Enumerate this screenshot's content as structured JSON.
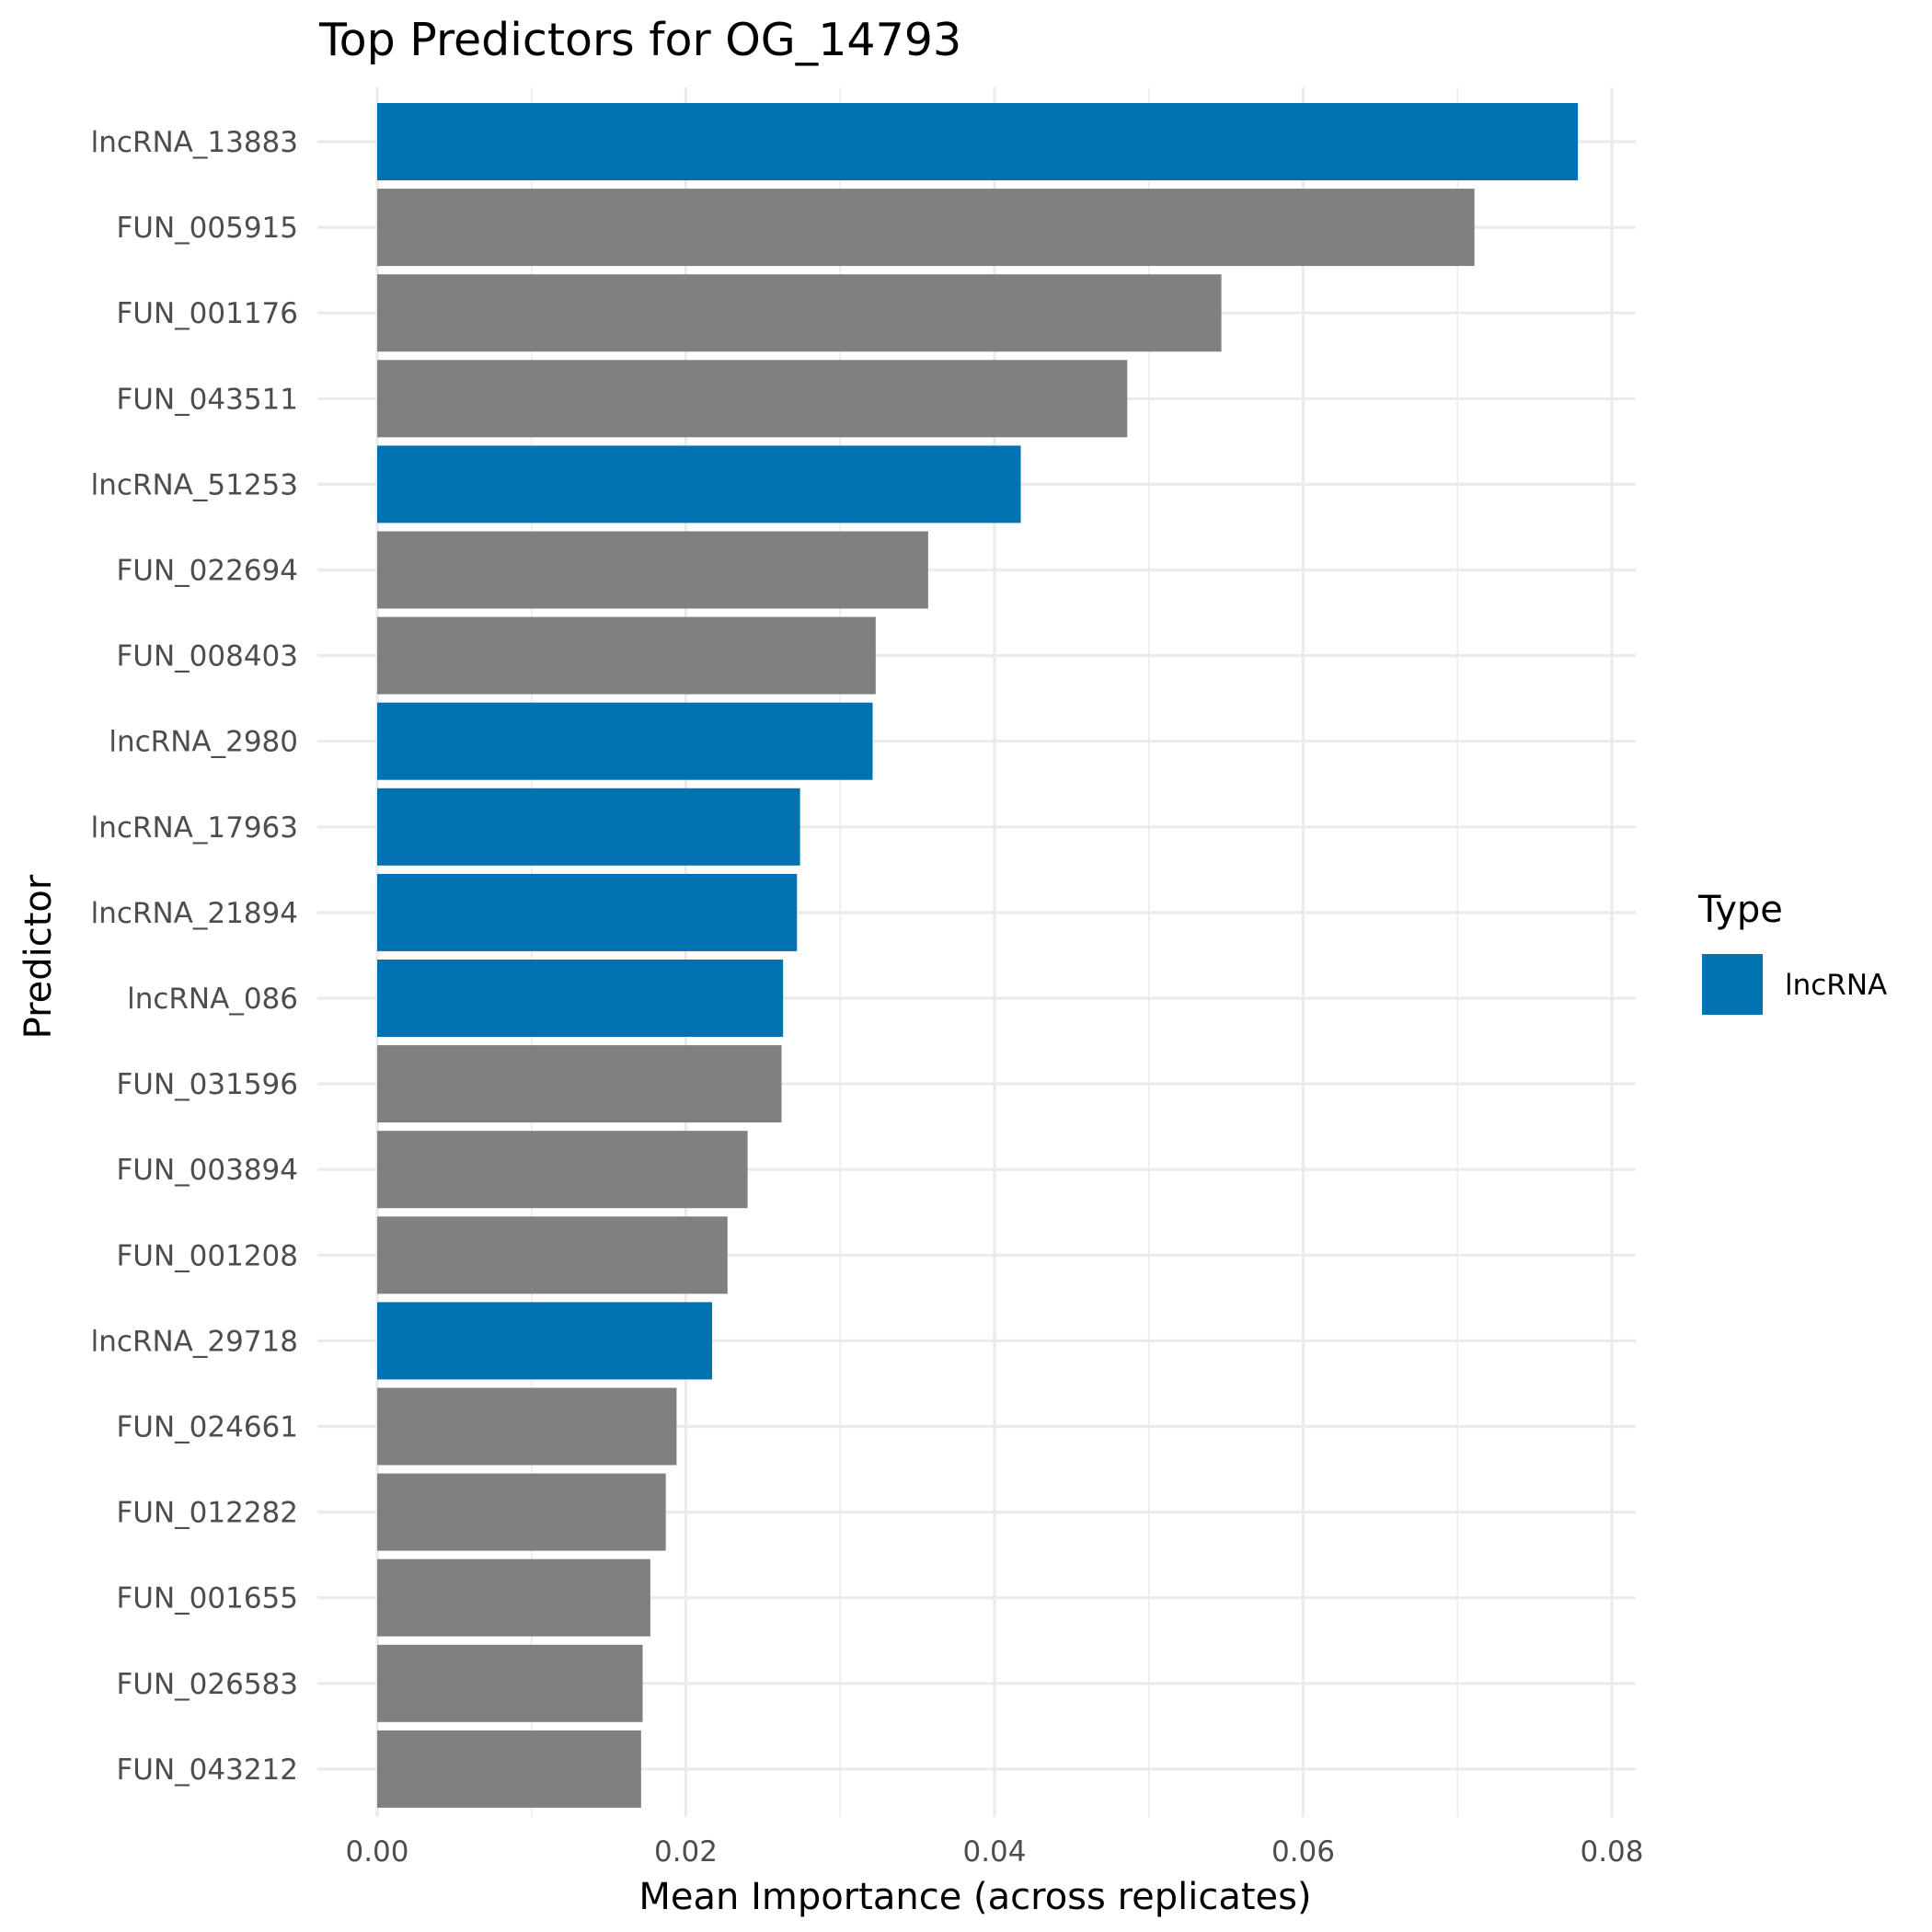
{
  "chart_data": {
    "type": "bar",
    "orientation": "horizontal",
    "title": "Top Predictors for OG_14793",
    "xlabel": "Mean Importance (across replicates)",
    "ylabel": "Predictor",
    "xlim": [
      0,
      0.08
    ],
    "x_ticks": [
      "0.00",
      "0.02",
      "0.04",
      "0.06",
      "0.08"
    ],
    "grid": true,
    "legend": {
      "title": "Type",
      "placement": "right",
      "entries": [
        {
          "label": "lncRNA",
          "color": "#0072B2"
        }
      ]
    },
    "colors": {
      "lncRNA": "#0072B2",
      "other": "#808080"
    },
    "bars": [
      {
        "category": "lncRNA_13883",
        "value": 0.0778,
        "type": "lncRNA"
      },
      {
        "category": "FUN_005915",
        "value": 0.0711,
        "type": "other"
      },
      {
        "category": "FUN_001176",
        "value": 0.0547,
        "type": "other"
      },
      {
        "category": "FUN_043511",
        "value": 0.0486,
        "type": "other"
      },
      {
        "category": "lncRNA_51253",
        "value": 0.0417,
        "type": "lncRNA"
      },
      {
        "category": "FUN_022694",
        "value": 0.0357,
        "type": "other"
      },
      {
        "category": "FUN_008403",
        "value": 0.0323,
        "type": "other"
      },
      {
        "category": "lncRNA_2980",
        "value": 0.0321,
        "type": "lncRNA"
      },
      {
        "category": "lncRNA_17963",
        "value": 0.0274,
        "type": "lncRNA"
      },
      {
        "category": "lncRNA_21894",
        "value": 0.0272,
        "type": "lncRNA"
      },
      {
        "category": "lncRNA_086",
        "value": 0.0263,
        "type": "lncRNA"
      },
      {
        "category": "FUN_031596",
        "value": 0.0262,
        "type": "other"
      },
      {
        "category": "FUN_003894",
        "value": 0.024,
        "type": "other"
      },
      {
        "category": "FUN_001208",
        "value": 0.0227,
        "type": "other"
      },
      {
        "category": "lncRNA_29718",
        "value": 0.0217,
        "type": "lncRNA"
      },
      {
        "category": "FUN_024661",
        "value": 0.0194,
        "type": "other"
      },
      {
        "category": "FUN_012282",
        "value": 0.0187,
        "type": "other"
      },
      {
        "category": "FUN_001655",
        "value": 0.0177,
        "type": "other"
      },
      {
        "category": "FUN_026583",
        "value": 0.0172,
        "type": "other"
      },
      {
        "category": "FUN_043212",
        "value": 0.0171,
        "type": "other"
      }
    ]
  }
}
